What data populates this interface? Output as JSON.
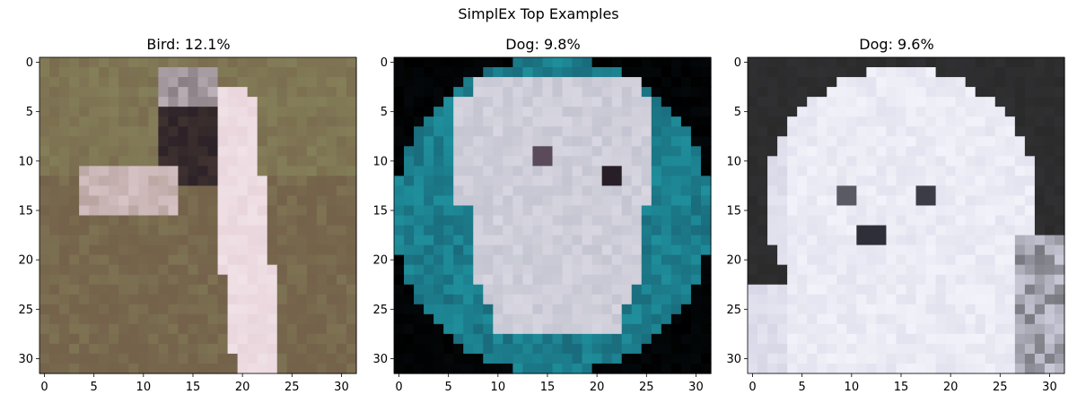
{
  "suptitle": "SimplEx Top Examples",
  "chart_data": [
    {
      "type": "image",
      "title": "Bird: 12.1%",
      "class_label": "Bird",
      "weight_percent": 12.1,
      "xlim": [
        -0.5,
        31.5
      ],
      "ylim": [
        31.5,
        -0.5
      ],
      "xticks": [
        0,
        5,
        10,
        15,
        20,
        25,
        30
      ],
      "yticks": [
        0,
        5,
        10,
        15,
        20,
        25,
        30
      ],
      "colors": {
        "background": "#6f5a45",
        "accent1": "#8c8a60",
        "accent2": "#e9d5dc",
        "accent3": "#2b2127"
      }
    },
    {
      "type": "image",
      "title": "Dog: 9.8%",
      "class_label": "Dog",
      "weight_percent": 9.8,
      "xlim": [
        -0.5,
        31.5
      ],
      "ylim": [
        31.5,
        -0.5
      ],
      "xticks": [
        0,
        5,
        10,
        15,
        20,
        25,
        30
      ],
      "yticks": [
        0,
        5,
        10,
        15,
        20,
        25,
        30
      ],
      "colors": {
        "background": "#000000",
        "accent1": "#1f8f9c",
        "accent2": "#d8d6e0",
        "accent3": "#5a4a5a"
      }
    },
    {
      "type": "image",
      "title": "Dog: 9.6%",
      "class_label": "Dog",
      "weight_percent": 9.6,
      "xlim": [
        -0.5,
        31.5
      ],
      "ylim": [
        31.5,
        -0.5
      ],
      "xticks": [
        0,
        5,
        10,
        15,
        20,
        25,
        30
      ],
      "yticks": [
        0,
        5,
        10,
        15,
        20,
        25,
        30
      ],
      "colors": {
        "background": "#2a2a2a",
        "accent1": "#f2f2fa",
        "accent2": "#c8c8dc",
        "accent3": "#2f2f3a"
      }
    }
  ]
}
